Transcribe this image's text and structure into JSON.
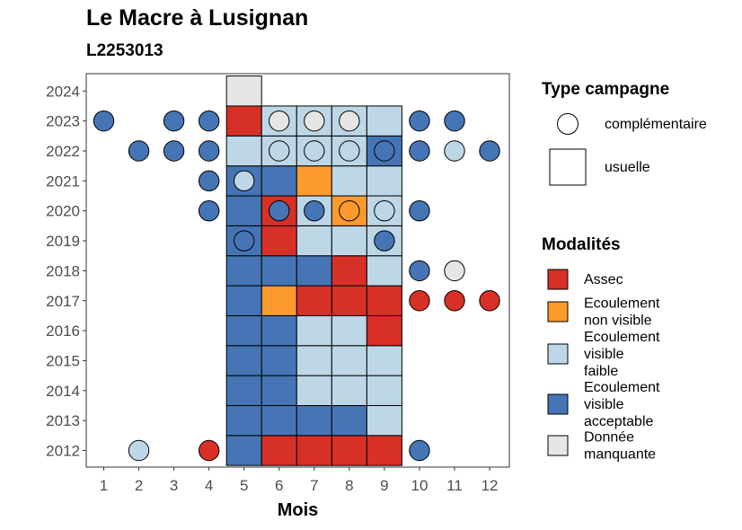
{
  "chart_data": {
    "type": "heatmap",
    "title": "Le Macre à Lusignan",
    "subtitle": "L2253013",
    "xlabel": "Mois",
    "ylabel": "",
    "x_ticks": [
      "1",
      "2",
      "3",
      "4",
      "5",
      "6",
      "7",
      "8",
      "9",
      "10",
      "11",
      "12"
    ],
    "y_ticks": [
      "2012",
      "2013",
      "2014",
      "2015",
      "2016",
      "2017",
      "2018",
      "2019",
      "2020",
      "2021",
      "2022",
      "2023",
      "2024"
    ],
    "legend_shape": {
      "title": "Type campagne",
      "items": [
        {
          "label": "complémentaire",
          "shape": "circle"
        },
        {
          "label": "usuelle",
          "shape": "square"
        }
      ]
    },
    "legend_color": {
      "title": "Modalités",
      "items": [
        {
          "key": "A",
          "lines": [
            "Assec"
          ],
          "color": "#d73027"
        },
        {
          "key": "N",
          "lines": [
            "Ecoulement",
            "non visible"
          ],
          "color": "#fd9a2e"
        },
        {
          "key": "F",
          "lines": [
            "Ecoulement",
            "visible",
            "faible"
          ],
          "color": "#bdd7e7"
        },
        {
          "key": "V",
          "lines": [
            "Ecoulement",
            "visible",
            "acceptable"
          ],
          "color": "#4575b4"
        },
        {
          "key": "M",
          "lines": [
            "Donnée",
            "manquante"
          ],
          "color": "#e6e6e6"
        }
      ]
    },
    "squares": [
      {
        "year": 2012,
        "values": [
          [
            5,
            "V"
          ],
          [
            6,
            "A"
          ],
          [
            7,
            "A"
          ],
          [
            8,
            "A"
          ],
          [
            9,
            "A"
          ]
        ]
      },
      {
        "year": 2013,
        "values": [
          [
            5,
            "V"
          ],
          [
            6,
            "V"
          ],
          [
            7,
            "V"
          ],
          [
            8,
            "V"
          ],
          [
            9,
            "F"
          ]
        ]
      },
      {
        "year": 2014,
        "values": [
          [
            5,
            "V"
          ],
          [
            6,
            "V"
          ],
          [
            7,
            "F"
          ],
          [
            8,
            "F"
          ],
          [
            9,
            "F"
          ]
        ]
      },
      {
        "year": 2015,
        "values": [
          [
            5,
            "V"
          ],
          [
            6,
            "V"
          ],
          [
            7,
            "F"
          ],
          [
            8,
            "F"
          ],
          [
            9,
            "F"
          ]
        ]
      },
      {
        "year": 2016,
        "values": [
          [
            5,
            "V"
          ],
          [
            6,
            "V"
          ],
          [
            7,
            "F"
          ],
          [
            8,
            "F"
          ],
          [
            9,
            "A"
          ]
        ]
      },
      {
        "year": 2017,
        "values": [
          [
            5,
            "V"
          ],
          [
            6,
            "N"
          ],
          [
            7,
            "A"
          ],
          [
            8,
            "A"
          ],
          [
            9,
            "A"
          ]
        ]
      },
      {
        "year": 2018,
        "values": [
          [
            5,
            "V"
          ],
          [
            6,
            "V"
          ],
          [
            7,
            "V"
          ],
          [
            8,
            "A"
          ],
          [
            9,
            "F"
          ]
        ]
      },
      {
        "year": 2019,
        "values": [
          [
            5,
            "V"
          ],
          [
            6,
            "A"
          ],
          [
            7,
            "F"
          ],
          [
            8,
            "F"
          ],
          [
            9,
            "F"
          ]
        ]
      },
      {
        "year": 2020,
        "values": [
          [
            5,
            "V"
          ],
          [
            6,
            "A"
          ],
          [
            7,
            "F"
          ],
          [
            8,
            "N"
          ],
          [
            9,
            "F"
          ]
        ]
      },
      {
        "year": 2021,
        "values": [
          [
            5,
            "V"
          ],
          [
            6,
            "V"
          ],
          [
            7,
            "N"
          ],
          [
            8,
            "F"
          ],
          [
            9,
            "F"
          ]
        ]
      },
      {
        "year": 2022,
        "values": [
          [
            5,
            "F"
          ],
          [
            6,
            "F"
          ],
          [
            7,
            "F"
          ],
          [
            8,
            "F"
          ],
          [
            9,
            "V"
          ]
        ]
      },
      {
        "year": 2023,
        "values": [
          [
            5,
            "A"
          ],
          [
            6,
            "F"
          ],
          [
            7,
            "F"
          ],
          [
            8,
            "F"
          ],
          [
            9,
            "F"
          ]
        ]
      },
      {
        "year": 2024,
        "values": [
          [
            5,
            "M"
          ]
        ]
      }
    ],
    "circles": [
      {
        "year": 2012,
        "values": [
          [
            2,
            "F"
          ],
          [
            4,
            "A"
          ],
          [
            10,
            "V"
          ]
        ]
      },
      {
        "year": 2017,
        "values": [
          [
            10,
            "A"
          ],
          [
            11,
            "A"
          ],
          [
            12,
            "A"
          ]
        ]
      },
      {
        "year": 2018,
        "values": [
          [
            10,
            "V"
          ],
          [
            11,
            "M"
          ]
        ]
      },
      {
        "year": 2019,
        "values": [
          [
            5,
            "V"
          ],
          [
            9,
            "V"
          ]
        ]
      },
      {
        "year": 2020,
        "values": [
          [
            4,
            "V"
          ],
          [
            6,
            "V"
          ],
          [
            7,
            "V"
          ],
          [
            8,
            "N"
          ],
          [
            9,
            "F"
          ],
          [
            10,
            "V"
          ]
        ]
      },
      {
        "year": 2021,
        "values": [
          [
            4,
            "V"
          ],
          [
            5,
            "F"
          ]
        ]
      },
      {
        "year": 2022,
        "values": [
          [
            2,
            "V"
          ],
          [
            3,
            "V"
          ],
          [
            4,
            "V"
          ],
          [
            6,
            "F"
          ],
          [
            7,
            "F"
          ],
          [
            8,
            "F"
          ],
          [
            9,
            "V"
          ],
          [
            10,
            "V"
          ],
          [
            11,
            "F"
          ],
          [
            12,
            "V"
          ]
        ]
      },
      {
        "year": 2023,
        "values": [
          [
            1,
            "V"
          ],
          [
            3,
            "V"
          ],
          [
            4,
            "V"
          ],
          [
            6,
            "M"
          ],
          [
            7,
            "M"
          ],
          [
            8,
            "M"
          ],
          [
            10,
            "V"
          ],
          [
            11,
            "V"
          ]
        ]
      }
    ]
  }
}
